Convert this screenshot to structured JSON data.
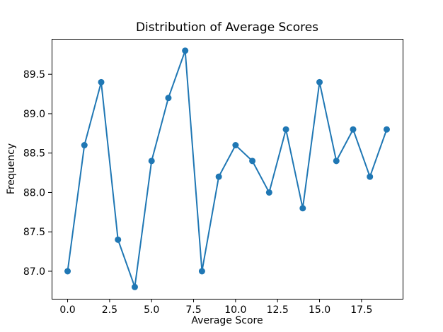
{
  "chart_data": {
    "type": "line",
    "title": "Distribution of Average Scores",
    "xlabel": "Average Score",
    "ylabel": "Frequency",
    "x": [
      0,
      1,
      2,
      3,
      4,
      5,
      6,
      7,
      8,
      9,
      10,
      11,
      12,
      13,
      14,
      15,
      16,
      17,
      18,
      19
    ],
    "values": [
      87.0,
      88.6,
      89.4,
      87.4,
      86.8,
      88.4,
      89.2,
      89.8,
      87.0,
      88.2,
      88.6,
      88.4,
      88.0,
      88.8,
      87.8,
      89.4,
      88.4,
      88.8,
      88.2,
      88.8
    ],
    "xlim": [
      -0.95,
      19.95
    ],
    "ylim": [
      86.65,
      89.95
    ],
    "xticks": [
      0,
      2.5,
      5,
      7.5,
      10,
      12.5,
      15,
      17.5
    ],
    "xtick_labels": [
      "0.0",
      "2.5",
      "5.0",
      "7.5",
      "10.0",
      "12.5",
      "15.0",
      "17.5"
    ],
    "yticks": [
      87.0,
      87.5,
      88.0,
      88.5,
      89.0,
      89.5
    ],
    "ytick_labels": [
      "87.0",
      "87.5",
      "88.0",
      "88.5",
      "89.0",
      "89.5"
    ],
    "line_color": "#1f77b4",
    "marker": "o",
    "grid": false,
    "legend": null,
    "background_color": "#ffffff",
    "spine_color": "#000000"
  }
}
